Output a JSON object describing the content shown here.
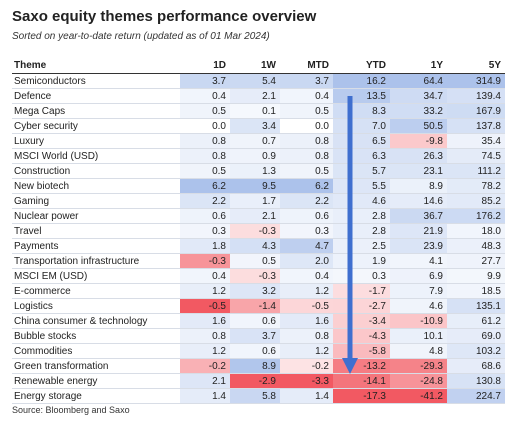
{
  "title": "Saxo equity themes performance overview",
  "subtitle": "Sorted on year-to-date return (updated as of 01 Mar 2024)",
  "table": {
    "columns": [
      "Theme",
      "1D",
      "1W",
      "MTD",
      "YTD",
      "1Y",
      "5Y"
    ],
    "rows": [
      [
        "Semiconductors",
        "3.7",
        "5.4",
        "3.7",
        "16.2",
        "64.4",
        "314.9"
      ],
      [
        "Defence",
        "0.4",
        "2.1",
        "0.4",
        "13.5",
        "34.7",
        "139.4"
      ],
      [
        "Mega Caps",
        "0.5",
        "0.1",
        "0.5",
        "8.3",
        "33.2",
        "167.9"
      ],
      [
        "Cyber security",
        "0.0",
        "3.4",
        "0.0",
        "7.0",
        "50.5",
        "137.8"
      ],
      [
        "Luxury",
        "0.8",
        "0.7",
        "0.8",
        "6.5",
        "-9.8",
        "35.4"
      ],
      [
        "MSCI World (USD)",
        "0.8",
        "0.9",
        "0.8",
        "6.3",
        "26.3",
        "74.5"
      ],
      [
        "Construction",
        "0.5",
        "1.3",
        "0.5",
        "5.7",
        "23.1",
        "111.2"
      ],
      [
        "New biotech",
        "6.2",
        "9.5",
        "6.2",
        "5.5",
        "8.9",
        "78.2"
      ],
      [
        "Gaming",
        "2.2",
        "1.7",
        "2.2",
        "4.6",
        "14.6",
        "85.2"
      ],
      [
        "Nuclear power",
        "0.6",
        "2.1",
        "0.6",
        "2.8",
        "36.7",
        "176.2"
      ],
      [
        "Travel",
        "0.3",
        "-0.3",
        "0.3",
        "2.8",
        "21.9",
        "18.0"
      ],
      [
        "Payments",
        "1.8",
        "4.3",
        "4.7",
        "2.5",
        "23.9",
        "48.3"
      ],
      [
        "Transportation infrastructure",
        "-0.3",
        "0.5",
        "2.0",
        "1.9",
        "4.1",
        "27.7"
      ],
      [
        "MSCI EM (USD)",
        "0.4",
        "-0.3",
        "0.4",
        "0.3",
        "6.9",
        "9.9"
      ],
      [
        "E-commerce",
        "1.2",
        "3.2",
        "1.2",
        "-1.7",
        "7.9",
        "18.5"
      ],
      [
        "Logistics",
        "-0.5",
        "-1.4",
        "-0.5",
        "-2.7",
        "4.6",
        "135.1"
      ],
      [
        "China consumer & technology",
        "1.6",
        "0.6",
        "1.6",
        "-3.4",
        "-10.9",
        "61.2"
      ],
      [
        "Bubble stocks",
        "0.8",
        "3.7",
        "0.8",
        "-4.3",
        "10.1",
        "69.0"
      ],
      [
        "Commodities",
        "1.2",
        "0.6",
        "1.2",
        "-5.8",
        "4.8",
        "103.2"
      ],
      [
        "Green transformation",
        "-0.2",
        "8.9",
        "-0.2",
        "-13.2",
        "-29.3",
        "68.6"
      ],
      [
        "Renewable energy",
        "2.1",
        "-2.9",
        "-3.3",
        "-14.1",
        "-24.8",
        "130.8"
      ],
      [
        "Energy storage",
        "1.4",
        "5.8",
        "1.4",
        "-17.3",
        "-41.2",
        "224.7"
      ]
    ]
  },
  "source": "Source: Bloomberg and Saxo"
}
